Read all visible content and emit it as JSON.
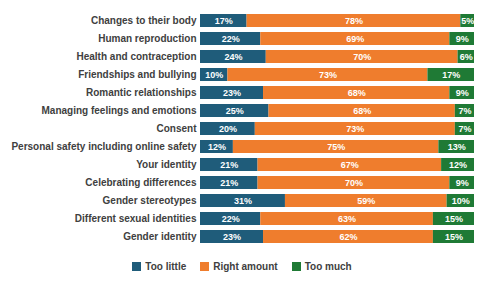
{
  "chart_data": {
    "type": "bar",
    "orientation": "horizontal",
    "stacked": true,
    "data_labels": true,
    "tick_labels": "y",
    "legend": "bottom",
    "xlim": [
      0,
      100
    ],
    "categories": [
      "Changes to their body",
      "Human reproduction",
      "Health and contraception",
      "Friendships and bullying",
      "Romantic relationships",
      "Managing feelings and emotions",
      "Consent",
      "Personal safety including online safety",
      "Your identity",
      "Celebrating differences",
      "Gender stereotypes",
      "Different sexual identities",
      "Gender identity"
    ],
    "series": [
      {
        "name": "Too little",
        "color": "#1f5c7a",
        "values": [
          17,
          22,
          24,
          10,
          23,
          25,
          20,
          12,
          21,
          21,
          31,
          22,
          23
        ],
        "value_labels": [
          "17%",
          "22%",
          "24%",
          "10%",
          "23%",
          "25%",
          "20%",
          "12%",
          "21%",
          "21%",
          "31%",
          "22%",
          "23%"
        ]
      },
      {
        "name": "Right amount",
        "color": "#ef7d2d",
        "values": [
          78,
          69,
          70,
          73,
          68,
          68,
          73,
          75,
          67,
          70,
          59,
          63,
          62
        ],
        "value_labels": [
          "78%",
          "69%",
          "70%",
          "73%",
          "68%",
          "68%",
          "73%",
          "75%",
          "67%",
          "70%",
          "59%",
          "63%",
          "62%"
        ]
      },
      {
        "name": "Too much",
        "color": "#1f7a35",
        "values": [
          5,
          9,
          6,
          17,
          9,
          7,
          7,
          13,
          12,
          9,
          10,
          15,
          15
        ],
        "value_labels": [
          "5%",
          "9%",
          "6%",
          "17%",
          "9%",
          "7%",
          "7%",
          "13%",
          "12%",
          "9%",
          "10%",
          "15%",
          "15%"
        ]
      }
    ]
  }
}
